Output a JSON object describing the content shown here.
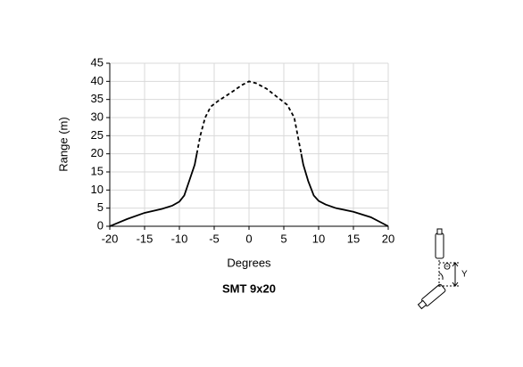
{
  "chart_data": {
    "type": "line",
    "title": "SMT 9x20",
    "xlabel": "Degrees",
    "ylabel": "Range (m)",
    "xlim": [
      -20,
      20
    ],
    "xticks": [
      -20,
      -15,
      -10,
      -5,
      0,
      5,
      10,
      15,
      20
    ],
    "ylim": [
      0,
      45
    ],
    "yticks": [
      0,
      5,
      10,
      15,
      20,
      25,
      30,
      35,
      40,
      45
    ],
    "grid": true,
    "series": [
      {
        "color": "#000000",
        "style": "solid",
        "x": [
          -20,
          -17.5,
          -15,
          -12.5,
          -11,
          -10,
          -9.3,
          -8.5,
          -7.8,
          -7.5
        ],
        "values": [
          0,
          2,
          3.7,
          4.8,
          5.7,
          6.8,
          8.5,
          13,
          17,
          20
        ]
      },
      {
        "color": "#000000",
        "style": "dashed",
        "x": [
          -7.5,
          -7,
          -6.3,
          -5.5,
          -4.5,
          -2.5,
          -1,
          0,
          1,
          2.5,
          4.5,
          5.5,
          6.5,
          7,
          7.5
        ],
        "values": [
          20,
          25,
          30,
          33,
          34.5,
          37,
          39,
          40,
          39.5,
          38,
          35,
          33.5,
          30,
          25,
          20
        ]
      },
      {
        "color": "#000000",
        "style": "solid",
        "x": [
          7.5,
          7.8,
          8.5,
          9.3,
          10,
          11,
          12.5,
          15,
          17.5,
          20
        ],
        "values": [
          20,
          17,
          12.5,
          8.5,
          7,
          6,
          5,
          4,
          2.5,
          0
        ]
      }
    ],
    "annotations": [
      "Θ",
      "Y"
    ]
  }
}
